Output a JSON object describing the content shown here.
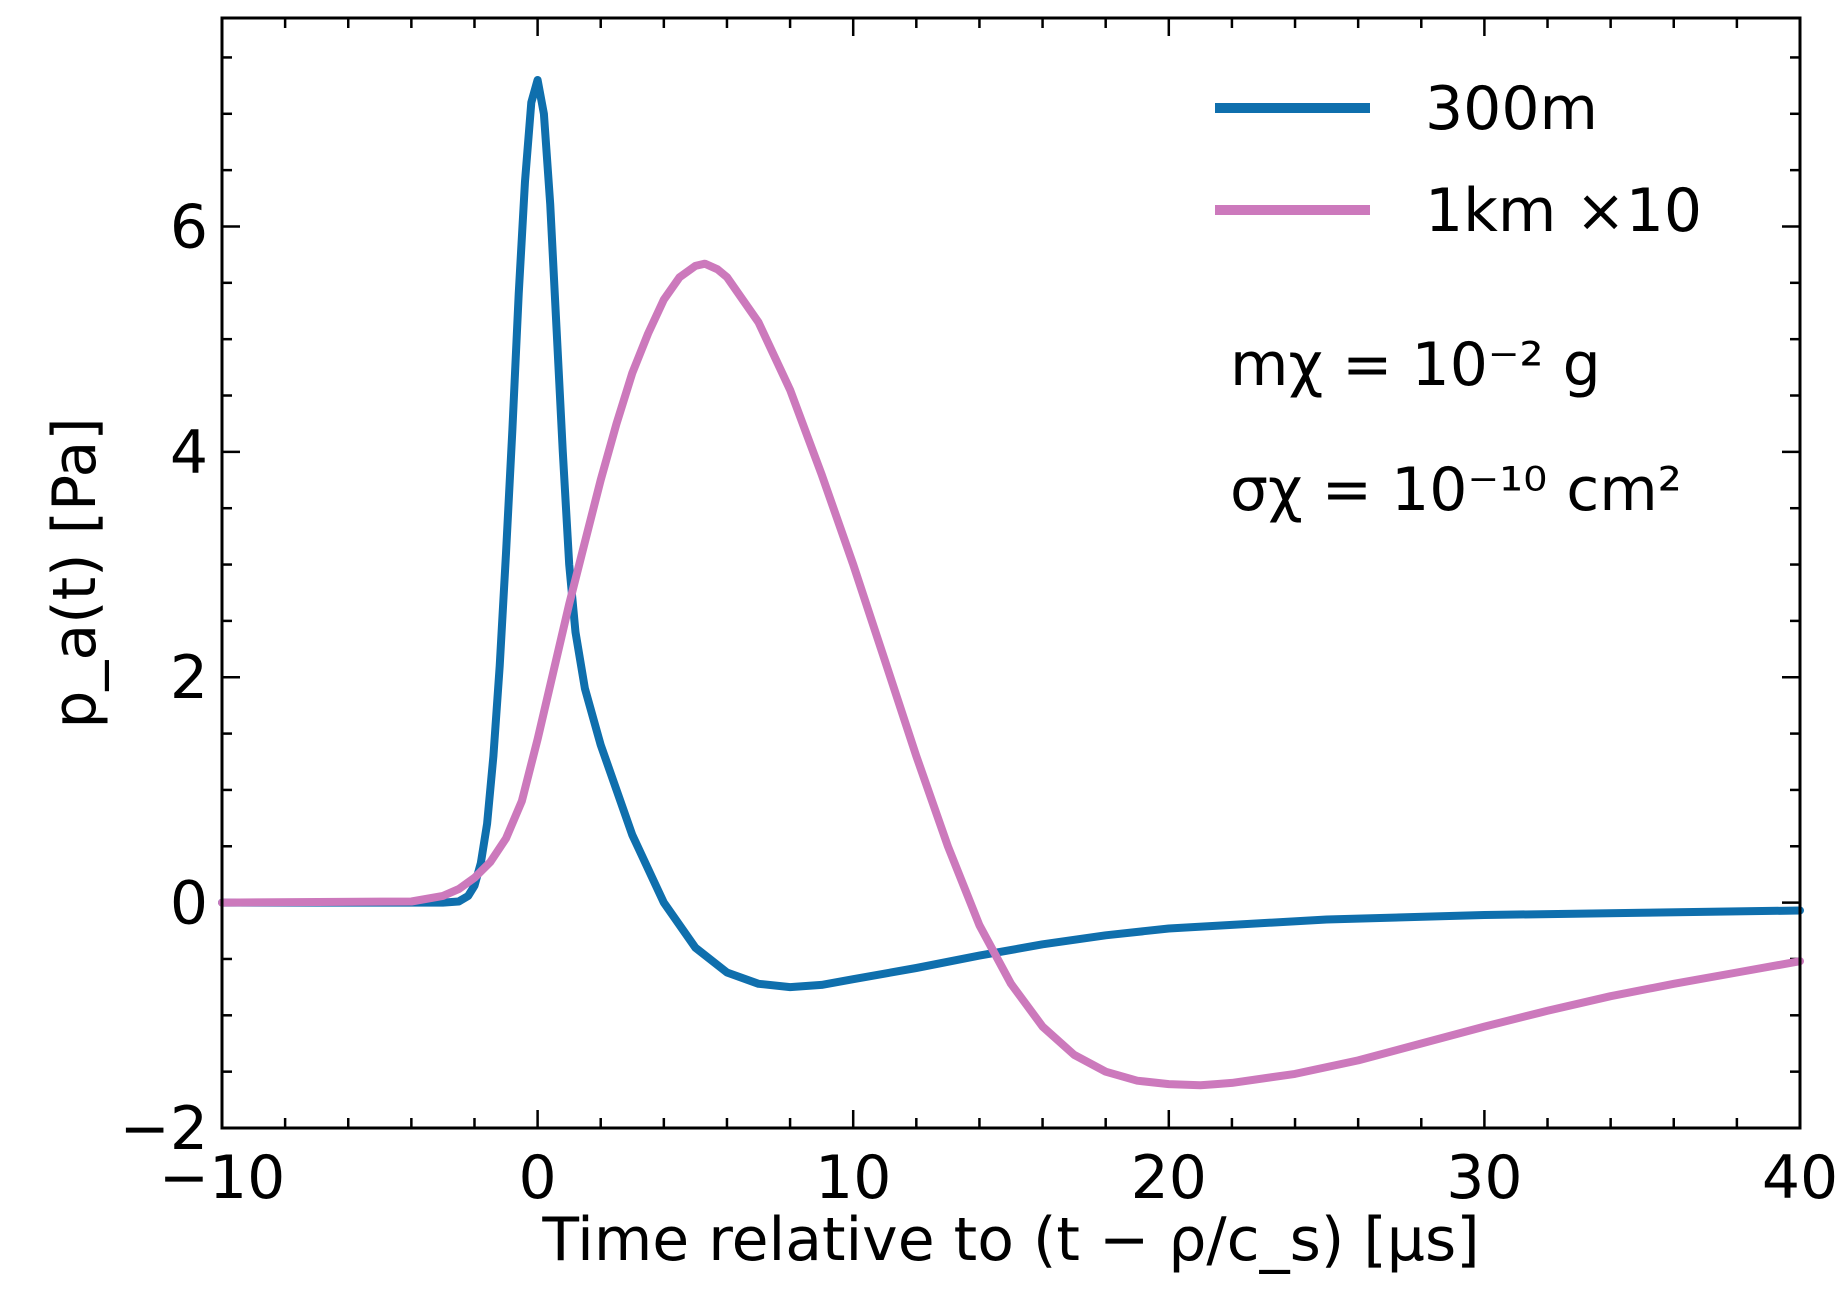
{
  "colors": {
    "series_300m": "#0f6fad",
    "series_1km": "#cc79bc",
    "axis": "#000000",
    "background": "#ffffff"
  },
  "chart_data": {
    "type": "line",
    "title": "",
    "xlabel": "Time relative to (t − ρ/c_s) [μs]",
    "ylabel": "p_a(t) [Pa]",
    "xlim": [
      -10,
      40
    ],
    "ylim": [
      -2,
      7.85
    ],
    "xticks": [
      -10,
      0,
      10,
      20,
      30,
      40
    ],
    "yticks": [
      -2,
      0,
      2,
      4,
      6
    ],
    "xtick_labels": [
      "−10",
      "0",
      "10",
      "20",
      "30",
      "40"
    ],
    "ytick_labels": [
      "−2",
      "0",
      "2",
      "4",
      "6"
    ],
    "grid": false,
    "legend_position": "top-right",
    "annotations": [
      "mχ = 10⁻² g",
      "σχ = 10⁻¹⁰ cm²"
    ],
    "series": [
      {
        "name": "300m",
        "x": [
          -10,
          -4,
          -3,
          -2.5,
          -2.2,
          -2.0,
          -1.8,
          -1.6,
          -1.4,
          -1.2,
          -1.0,
          -0.8,
          -0.6,
          -0.4,
          -0.2,
          0.0,
          0.2,
          0.4,
          0.6,
          0.8,
          1.0,
          1.2,
          1.5,
          2.0,
          2.5,
          3.0,
          4.0,
          5.0,
          6.0,
          7.0,
          8.0,
          9.0,
          10.0,
          12.0,
          14.0,
          16.0,
          18.0,
          20.0,
          25.0,
          30.0,
          35.0,
          40.0
        ],
        "y": [
          0.0,
          0.0,
          0.0,
          0.01,
          0.06,
          0.15,
          0.35,
          0.7,
          1.3,
          2.1,
          3.1,
          4.2,
          5.4,
          6.4,
          7.1,
          7.3,
          7.0,
          6.2,
          5.1,
          4.0,
          3.0,
          2.4,
          1.9,
          1.4,
          1.0,
          0.6,
          0.0,
          -0.4,
          -0.62,
          -0.72,
          -0.75,
          -0.73,
          -0.68,
          -0.58,
          -0.47,
          -0.37,
          -0.29,
          -0.23,
          -0.15,
          -0.11,
          -0.09,
          -0.07
        ]
      },
      {
        "name": "1km ×10",
        "x": [
          -10,
          -4,
          -3,
          -2.5,
          -2.0,
          -1.5,
          -1.0,
          -0.5,
          0.0,
          0.5,
          1.0,
          1.5,
          2.0,
          2.5,
          3.0,
          3.5,
          4.0,
          4.5,
          5.0,
          5.3,
          5.7,
          6.0,
          7.0,
          8.0,
          9.0,
          10.0,
          11.0,
          12.0,
          13.0,
          14.0,
          15.0,
          16.0,
          17.0,
          18.0,
          19.0,
          20.0,
          21.0,
          21.5,
          22.0,
          24.0,
          26.0,
          28.0,
          30.0,
          32.0,
          34.0,
          36.0,
          38.0,
          40.0
        ],
        "y": [
          0.0,
          0.01,
          0.06,
          0.12,
          0.22,
          0.36,
          0.57,
          0.9,
          1.45,
          2.05,
          2.65,
          3.2,
          3.75,
          4.25,
          4.7,
          5.05,
          5.35,
          5.55,
          5.65,
          5.67,
          5.62,
          5.55,
          5.15,
          4.55,
          3.8,
          3.0,
          2.15,
          1.3,
          0.5,
          -0.2,
          -0.72,
          -1.1,
          -1.35,
          -1.5,
          -1.58,
          -1.61,
          -1.62,
          -1.61,
          -1.6,
          -1.52,
          -1.4,
          -1.25,
          -1.1,
          -0.96,
          -0.83,
          -0.72,
          -0.62,
          -0.52
        ]
      }
    ]
  }
}
